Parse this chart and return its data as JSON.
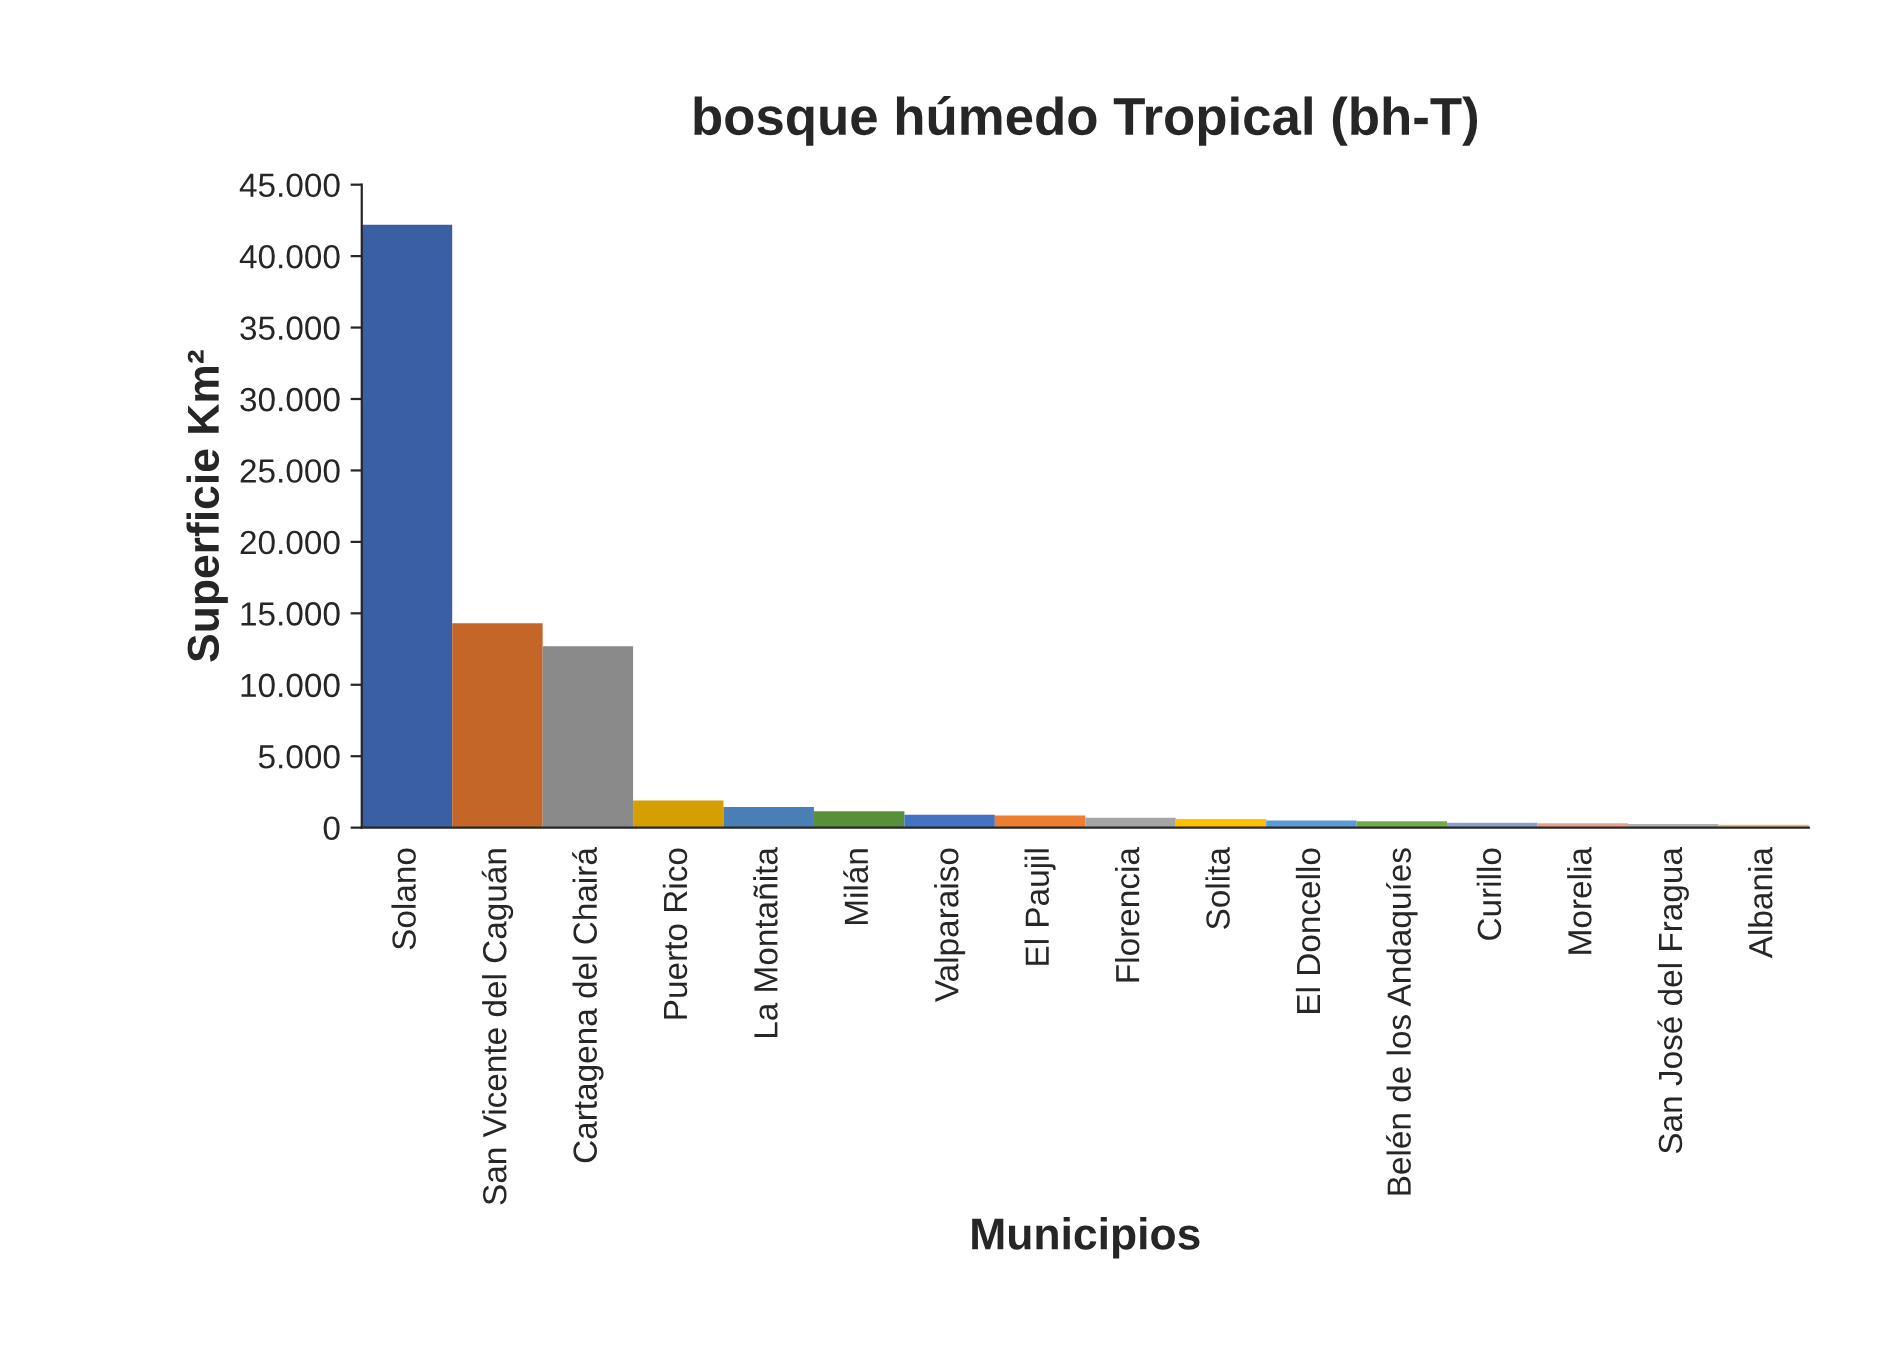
{
  "chart_data": {
    "type": "bar",
    "title": "bosque húmedo Tropical (bh-T)",
    "xlabel": "Municipios",
    "ylabel": "Superficie Km²",
    "categories": [
      "Solano",
      "San Vicente del Caguán",
      "Cartagena del Chairá",
      "Puerto Rico",
      "La Montañita",
      "Milán",
      "Valparaiso",
      "El Paujil",
      "Florencia",
      "Solita",
      "El Doncello",
      "Belén de los Andaquíes",
      "Curillo",
      "Morelia",
      "San José del Fragua",
      "Albania"
    ],
    "values": [
      42200,
      14300,
      12700,
      1900,
      1450,
      1150,
      900,
      850,
      700,
      600,
      500,
      450,
      350,
      300,
      250,
      200
    ],
    "colors": [
      "#3a5fa3",
      "#c46628",
      "#8a8a8a",
      "#d4a000",
      "#4a7fb5",
      "#5a8f3a",
      "#4472c4",
      "#ed7d31",
      "#a5a5a5",
      "#ffc000",
      "#5b9bd5",
      "#70ad47",
      "#8a9ed0",
      "#e8a08a",
      "#b0b0b0",
      "#e0c080"
    ],
    "ylim": [
      0,
      45000
    ],
    "yticks": [
      {
        "value": 0,
        "label": "0"
      },
      {
        "value": 5000,
        "label": "5.000"
      },
      {
        "value": 10000,
        "label": "10.000"
      },
      {
        "value": 15000,
        "label": "15.000"
      },
      {
        "value": 20000,
        "label": "20.000"
      },
      {
        "value": 25000,
        "label": "25.000"
      },
      {
        "value": 30000,
        "label": "30.000"
      },
      {
        "value": 35000,
        "label": "35.000"
      },
      {
        "value": 40000,
        "label": "40.000"
      },
      {
        "value": 45000,
        "label": "45.000"
      }
    ],
    "grid": false,
    "legend": false
  }
}
